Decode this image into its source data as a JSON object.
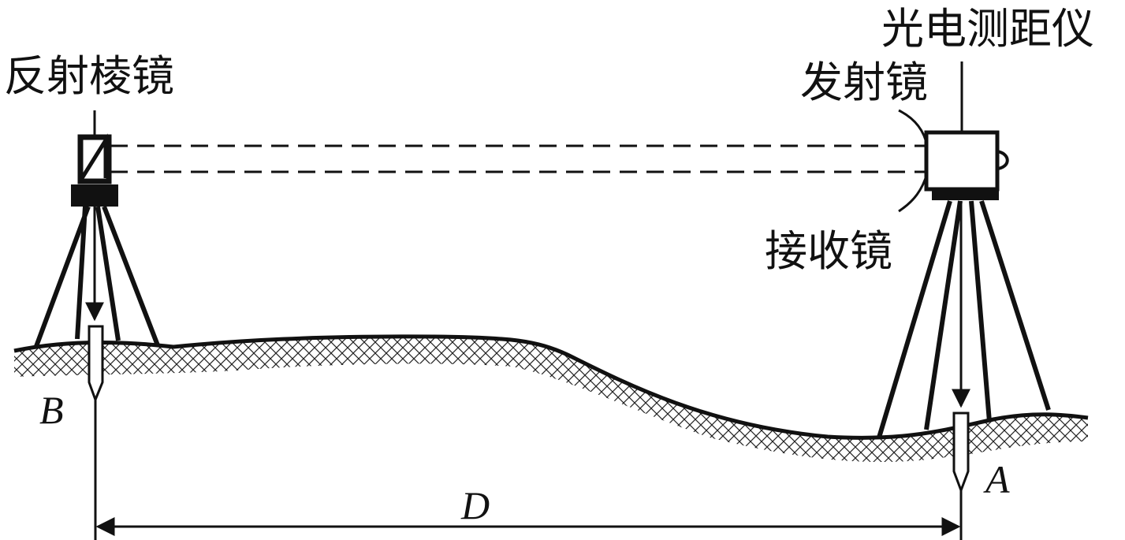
{
  "labels": {
    "reflector": "反射棱镜",
    "instrument": "光电测距仪",
    "transmitter": "发射镜",
    "receiver": "接收镜"
  },
  "points": {
    "b": "B",
    "a": "A"
  },
  "distance": "D"
}
